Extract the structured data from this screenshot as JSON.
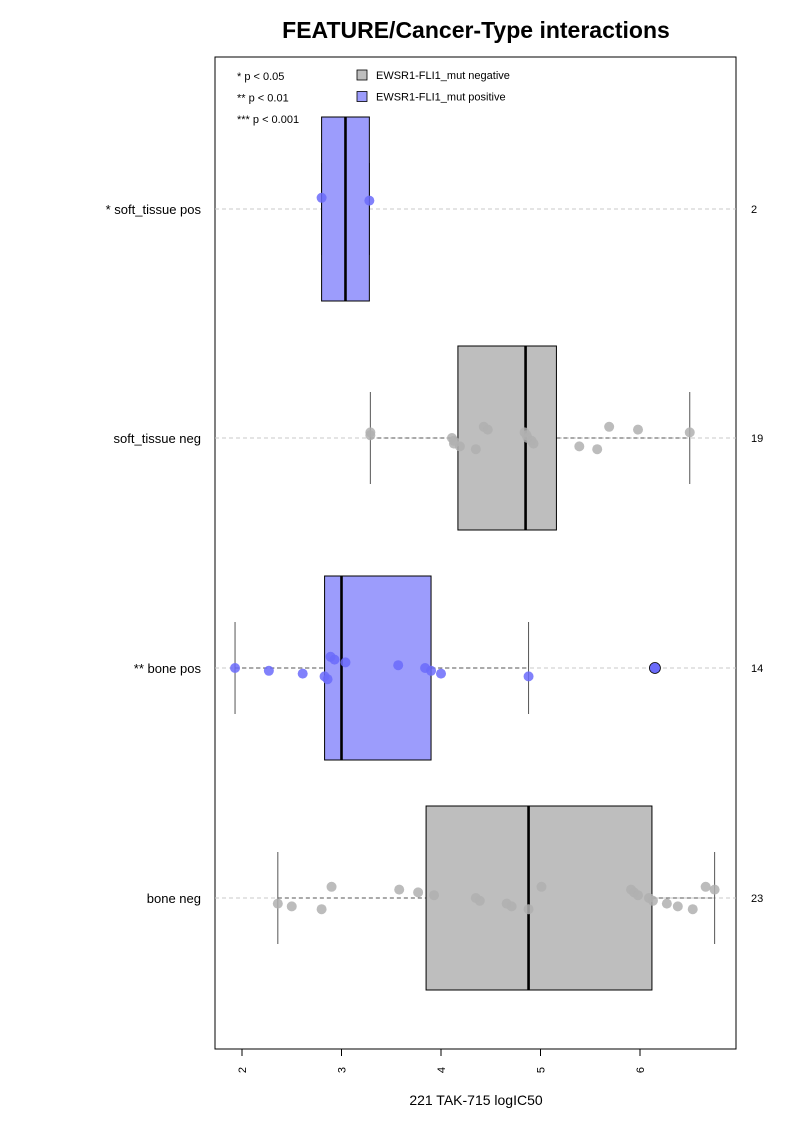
{
  "chart_data": {
    "type": "boxplot",
    "orientation": "horizontal",
    "title": "FEATURE/Cancer-Type interactions",
    "xlabel": "221 TAK-715 logIC50",
    "ylabel": "",
    "xlim": [
      1.8,
      7.0
    ],
    "x_ticks": [
      "2",
      "3",
      "4",
      "5",
      "6"
    ],
    "grid": false,
    "colors": {
      "negative": "#bebebe",
      "positive": "#9c9cfc",
      "neg_point": "#b0b0b0",
      "pos_point": "#6b6bfa"
    },
    "significance_legend": [
      "* p < 0.05",
      "** p < 0.01",
      "*** p < 0.001"
    ],
    "legend": [
      {
        "label": "EWSR1-FLI1_mut negative",
        "group": "negative"
      },
      {
        "label": "EWSR1-FLI1_mut positive",
        "group": "positive"
      }
    ],
    "groups": [
      {
        "label": "* soft_tissue pos",
        "n_label": "2",
        "status": "positive",
        "q1": 2.8,
        "median": 3.04,
        "q3": 3.28,
        "whisker_low": 2.8,
        "whisker_high": 3.28,
        "points": [
          2.8,
          3.28
        ],
        "outliers": []
      },
      {
        "label": "soft_tissue neg",
        "n_label": "19",
        "status": "negative",
        "q1": 4.17,
        "median": 4.85,
        "q3": 5.16,
        "whisker_low": 3.29,
        "whisker_high": 6.5,
        "points": [
          3.29,
          3.29,
          4.11,
          4.13,
          4.13,
          4.19,
          4.35,
          4.43,
          4.47,
          4.84,
          4.86,
          4.87,
          4.91,
          4.93,
          5.39,
          5.57,
          5.69,
          5.98,
          6.5
        ],
        "outliers": []
      },
      {
        "label": "** bone pos",
        "n_label": "14",
        "status": "positive",
        "q1": 2.83,
        "median": 3.0,
        "q3": 3.9,
        "whisker_low": 1.93,
        "whisker_high": 4.88,
        "points": [
          1.93,
          2.27,
          2.61,
          2.83,
          2.86,
          2.89,
          2.93,
          3.04,
          3.57,
          3.84,
          3.9,
          4.0,
          4.88
        ],
        "outliers": [
          6.15
        ]
      },
      {
        "label": "bone neg",
        "n_label": "23",
        "status": "negative",
        "q1": 3.85,
        "median": 4.88,
        "q3": 6.12,
        "whisker_low": 2.36,
        "whisker_high": 6.75,
        "points": [
          2.36,
          2.5,
          2.8,
          2.9,
          3.58,
          3.77,
          3.93,
          4.35,
          4.39,
          4.66,
          4.71,
          4.88,
          5.01,
          5.91,
          5.94,
          5.98,
          6.09,
          6.13,
          6.27,
          6.38,
          6.53,
          6.66,
          6.75
        ],
        "outliers": []
      }
    ]
  }
}
